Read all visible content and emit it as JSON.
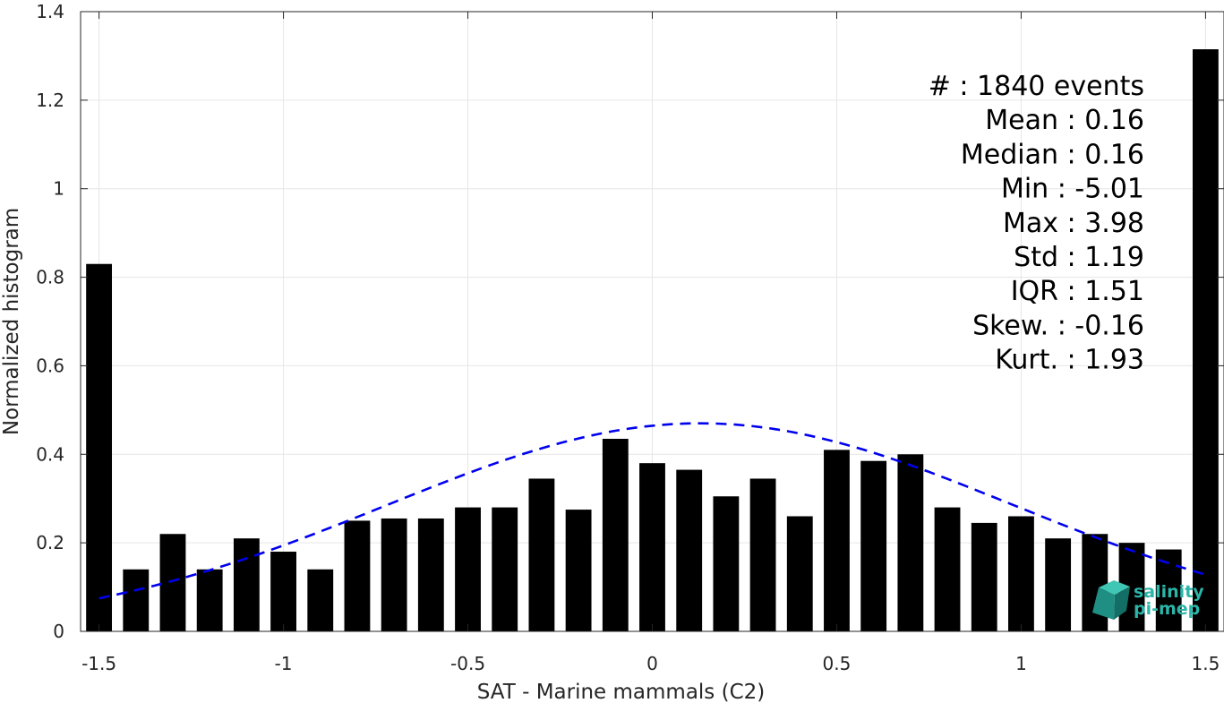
{
  "chart_data": {
    "type": "bar",
    "xlabel": "SAT - Marine mammals (C2)",
    "ylabel": "Normalized histogram",
    "xlim": [
      -1.55,
      1.55
    ],
    "ylim": [
      0,
      1.4
    ],
    "grid": true,
    "xticks": [
      -1.5,
      -1,
      -0.5,
      0,
      0.5,
      1,
      1.5
    ],
    "xtick_labels": [
      "-1.5",
      "-1",
      "-0.5",
      "0",
      "0.5",
      "1",
      "1.5"
    ],
    "yticks": [
      0,
      0.2,
      0.4,
      0.6,
      0.8,
      1,
      1.2,
      1.4
    ],
    "ytick_labels": [
      "0",
      "0.2",
      "0.4",
      "0.6",
      "0.8",
      "1",
      "1.2",
      "1.4"
    ],
    "bin_width": 0.07,
    "series": [
      {
        "type": "bar",
        "color": "#000000",
        "x": [
          -1.5,
          -1.4,
          -1.3,
          -1.2,
          -1.1,
          -1.0,
          -0.9,
          -0.8,
          -0.7,
          -0.6,
          -0.5,
          -0.4,
          -0.3,
          -0.2,
          -0.1,
          0.0,
          0.1,
          0.2,
          0.3,
          0.4,
          0.5,
          0.6,
          0.7,
          0.8,
          0.9,
          1.0,
          1.1,
          1.2,
          1.3,
          1.4,
          1.5
        ],
        "values": [
          0.83,
          0.14,
          0.22,
          0.14,
          0.21,
          0.18,
          0.14,
          0.25,
          0.255,
          0.255,
          0.28,
          0.28,
          0.345,
          0.275,
          0.435,
          0.38,
          0.365,
          0.305,
          0.345,
          0.26,
          0.41,
          0.385,
          0.4,
          0.28,
          0.245,
          0.26,
          0.21,
          0.22,
          0.2,
          0.185,
          1.315
        ]
      },
      {
        "type": "line",
        "style": "dashed",
        "color": "#0000ee",
        "mean": 0.13,
        "std": 0.85,
        "peak": 0.47,
        "x_range": [
          -1.5,
          1.5
        ]
      }
    ],
    "annotations": [
      {
        "label": "#  ",
        "value": ": 1840 events"
      },
      {
        "label": "Mean ",
        "value": ": 0.16"
      },
      {
        "label": "Median ",
        "value": ": 0.16"
      },
      {
        "label": "Min ",
        "value": ": -5.01"
      },
      {
        "label": "Max ",
        "value": ": 3.98"
      },
      {
        "label": "Std ",
        "value": ": 1.19"
      },
      {
        "label": "IQR ",
        "value": ": 1.51"
      },
      {
        "label": "Skew. ",
        "value": ": -0.16"
      },
      {
        "label": "Kurt. ",
        "value": ": 1.93"
      }
    ],
    "logo": {
      "line1": "salinity",
      "line2": "pi-mep"
    }
  }
}
